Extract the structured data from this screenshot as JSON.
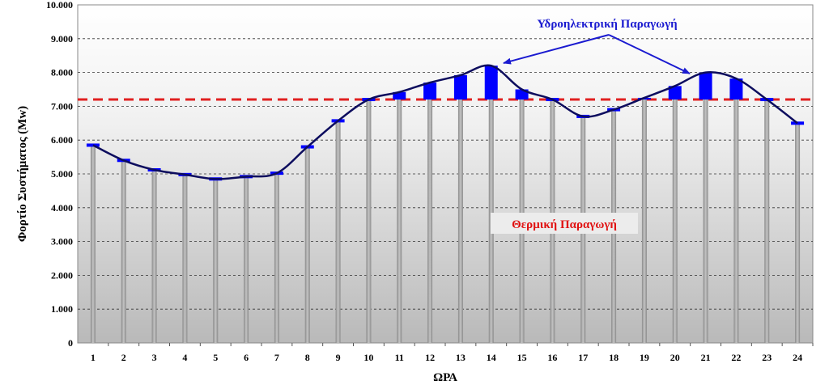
{
  "chart_data": {
    "type": "line",
    "xlabel": "ΩΡΑ",
    "ylabel": "Φορτίο Συστήματος (Mw)",
    "categories": [
      "1",
      "2",
      "3",
      "4",
      "5",
      "6",
      "7",
      "8",
      "9",
      "10",
      "11",
      "12",
      "13",
      "14",
      "15",
      "16",
      "17",
      "18",
      "19",
      "20",
      "21",
      "22",
      "23",
      "24"
    ],
    "ylim": [
      0,
      10000
    ],
    "yticks": [
      "0",
      "1.000",
      "2.000",
      "3.000",
      "4.000",
      "5.000",
      "6.000",
      "7.000",
      "8.000",
      "9.000",
      "10.000"
    ],
    "grid": true,
    "series": [
      {
        "values": [
          5850,
          5400,
          5120,
          4980,
          4850,
          4920,
          5020,
          5800,
          6570,
          7200,
          7420,
          7700,
          7920,
          8200,
          7500,
          7200,
          6700,
          6900,
          7250,
          7600,
          8000,
          7820,
          7200,
          6500
        ]
      }
    ],
    "reference_line": {
      "value": 7200
    },
    "annotations": {
      "hydro": "Υδροηλεκτρική Παραγωγή",
      "thermal": "Θερμική Παραγωγή"
    },
    "colors": {
      "load_line": "#0d0d5e",
      "hydro_bar": "#0000ff",
      "thermal_bar": "#a8a8a8",
      "reference_line": "#e02020",
      "hydro_text": "#1a1ad0",
      "thermal_text": "#e01010"
    }
  }
}
